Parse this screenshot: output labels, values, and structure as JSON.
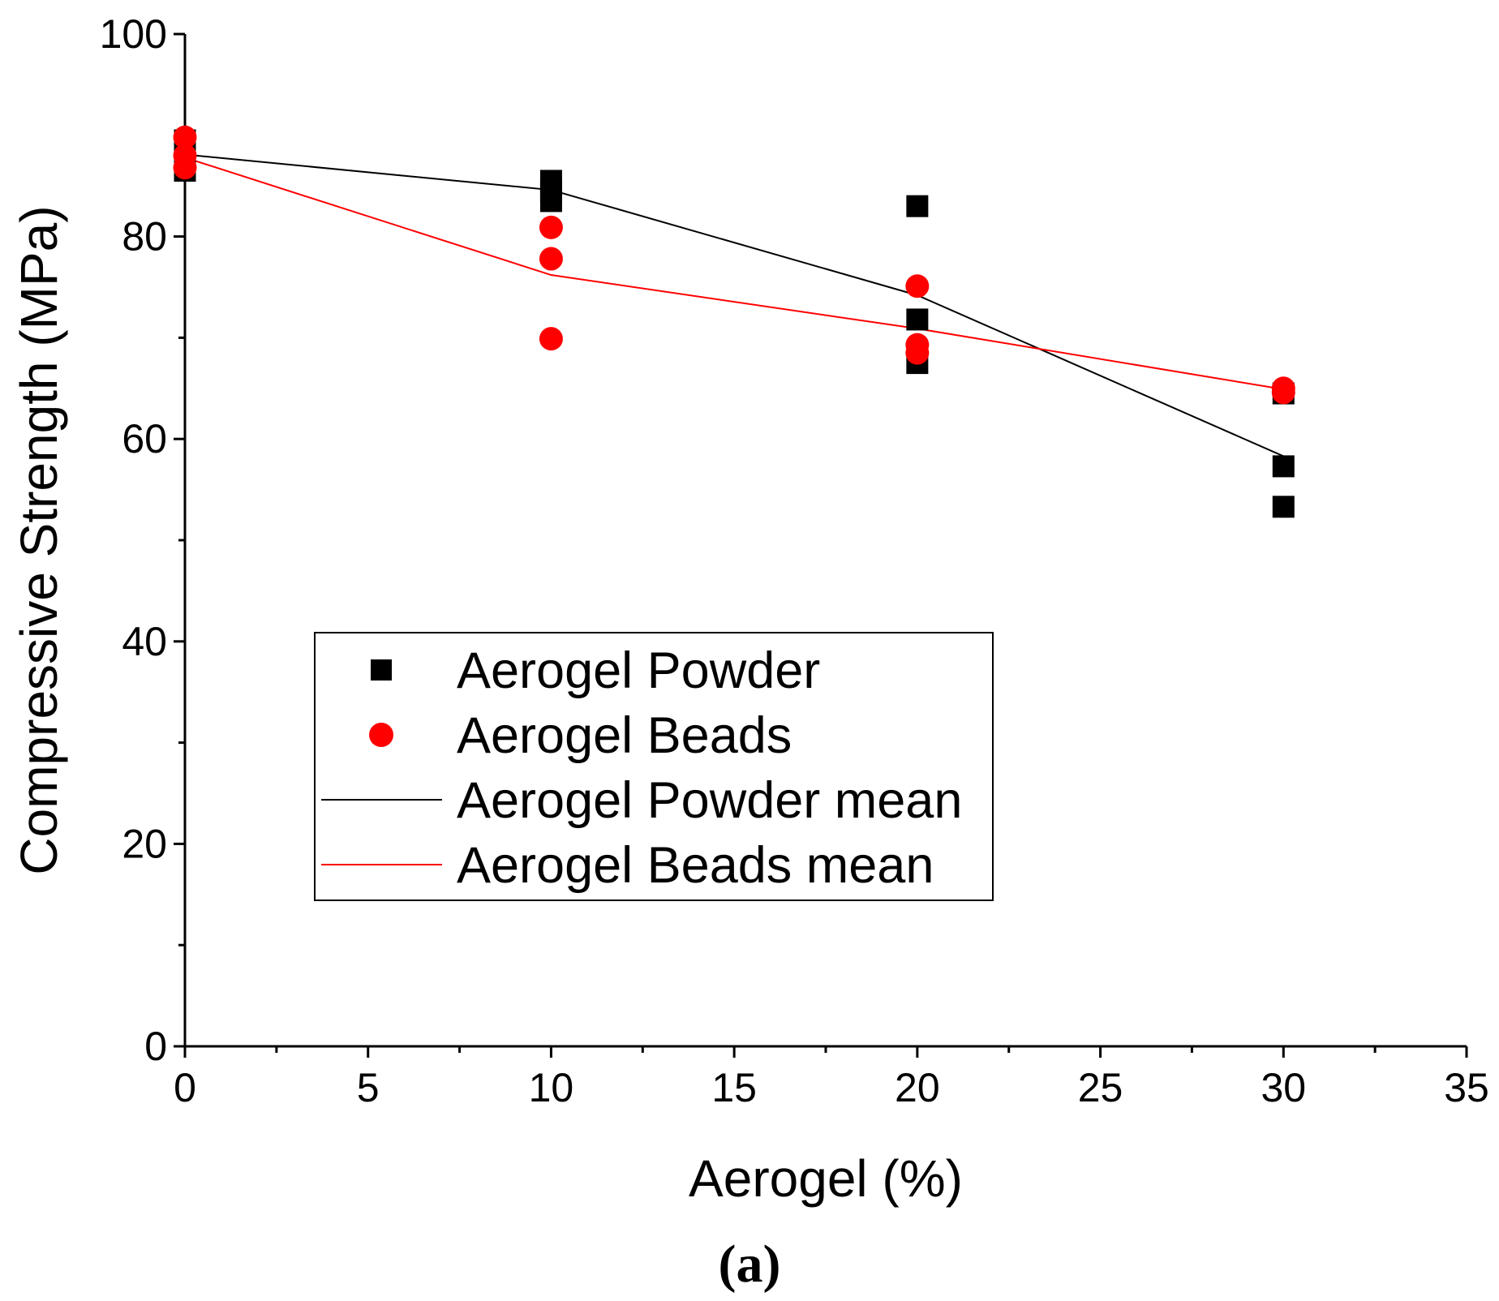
{
  "chart_data": {
    "type": "scatter",
    "title": "",
    "xlabel": "Aerogel (%)",
    "ylabel": "Compressive Strength (MPa)",
    "xlim": [
      0,
      35
    ],
    "ylim": [
      0,
      100
    ],
    "x_ticks": [
      0,
      5,
      10,
      15,
      20,
      25,
      30,
      35
    ],
    "y_ticks": [
      0,
      20,
      40,
      60,
      80,
      100
    ],
    "x_tick_labels": [
      "0",
      "5",
      "10",
      "15",
      "20",
      "25",
      "30",
      "35"
    ],
    "y_tick_labels": [
      "0",
      "20",
      "40",
      "60",
      "80",
      "100"
    ],
    "grid": false,
    "legend_position": "center-left",
    "series": [
      {
        "name": "Aerogel Powder",
        "kind": "scatter",
        "marker": "square",
        "color": "#000000",
        "points": [
          {
            "x": 0,
            "y": 89.5
          },
          {
            "x": 0,
            "y": 88.5
          },
          {
            "x": 0,
            "y": 86.5
          },
          {
            "x": 10,
            "y": 85.5
          },
          {
            "x": 10,
            "y": 84.5
          },
          {
            "x": 10,
            "y": 83.5
          },
          {
            "x": 20,
            "y": 83.0
          },
          {
            "x": 20,
            "y": 71.8
          },
          {
            "x": 20,
            "y": 67.5
          },
          {
            "x": 30,
            "y": 64.5
          },
          {
            "x": 30,
            "y": 57.3
          },
          {
            "x": 30,
            "y": 53.3
          }
        ]
      },
      {
        "name": "Aerogel Beads",
        "kind": "scatter",
        "marker": "circle",
        "color": "#ff0000",
        "points": [
          {
            "x": 0,
            "y": 89.8
          },
          {
            "x": 0,
            "y": 88.0
          },
          {
            "x": 0,
            "y": 86.8
          },
          {
            "x": 10,
            "y": 80.9
          },
          {
            "x": 10,
            "y": 77.8
          },
          {
            "x": 10,
            "y": 69.9
          },
          {
            "x": 20,
            "y": 75.1
          },
          {
            "x": 20,
            "y": 69.3
          },
          {
            "x": 20,
            "y": 68.5
          },
          {
            "x": 30,
            "y": 65.0
          },
          {
            "x": 30,
            "y": 64.6
          }
        ]
      },
      {
        "name": "Aerogel Powder mean",
        "kind": "line",
        "color": "#000000",
        "points": [
          {
            "x": 0,
            "y": 88.1
          },
          {
            "x": 10,
            "y": 84.6
          },
          {
            "x": 20,
            "y": 74.2
          },
          {
            "x": 30,
            "y": 58.3
          }
        ]
      },
      {
        "name": "Aerogel Beads mean",
        "kind": "line",
        "color": "#ff0000",
        "points": [
          {
            "x": 0,
            "y": 87.8
          },
          {
            "x": 10,
            "y": 76.2
          },
          {
            "x": 20,
            "y": 70.9
          },
          {
            "x": 30,
            "y": 64.9
          }
        ]
      }
    ]
  },
  "caption": "(a)"
}
